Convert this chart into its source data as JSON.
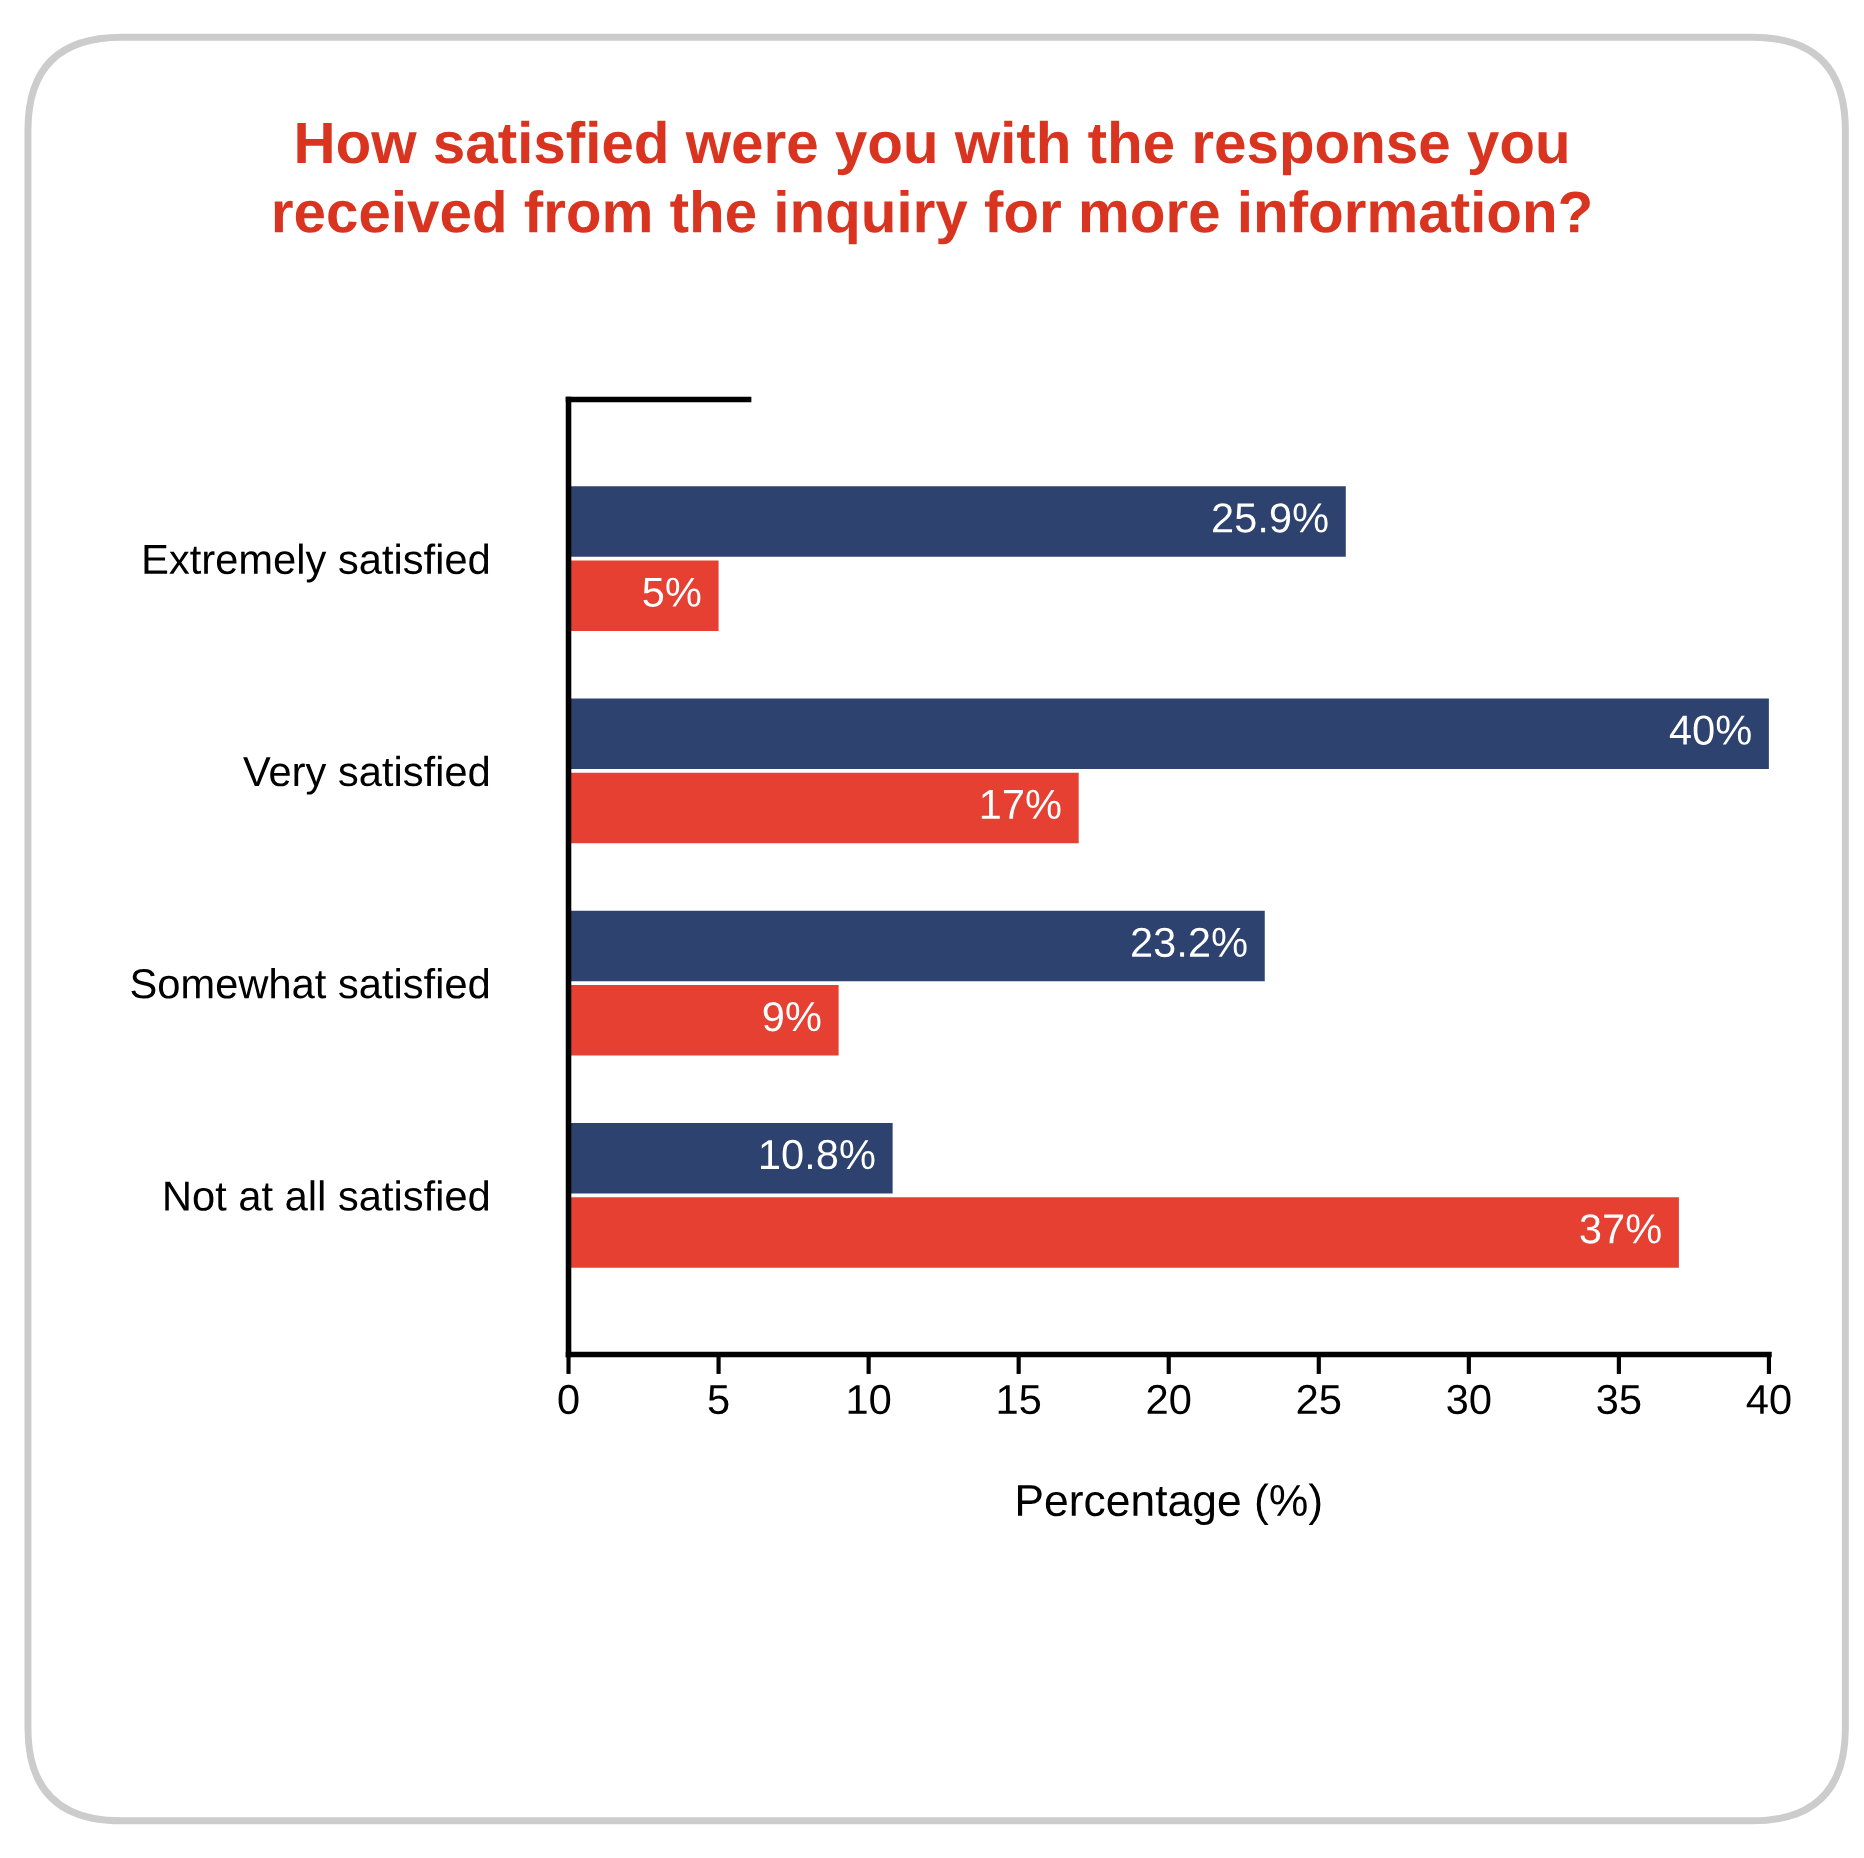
{
  "chart_data": {
    "type": "bar",
    "orientation": "horizontal",
    "title": "How satisfied were you with the response you\nreceived from the inquiry for more information?",
    "xlabel": "Percentage (%)",
    "categories": [
      "Extremely satisfied",
      "Very satisfied",
      "Somewhat satisfied",
      "Not at all satisfied"
    ],
    "series": [
      {
        "color": "#2e4270",
        "values": [
          25.9,
          40,
          23.2,
          10.8
        ],
        "value_labels": [
          "25.9%",
          "40%",
          "23.2%",
          "10.8%"
        ]
      },
      {
        "color": "#e64032",
        "values": [
          5,
          17,
          9,
          37
        ],
        "value_labels": [
          "5%",
          "17%",
          "9%",
          "37%"
        ]
      }
    ],
    "xlim": [
      0,
      40
    ],
    "xticks": [
      0,
      5,
      10,
      15,
      20,
      25,
      30,
      35,
      40
    ],
    "grid": false,
    "legend": false
  }
}
